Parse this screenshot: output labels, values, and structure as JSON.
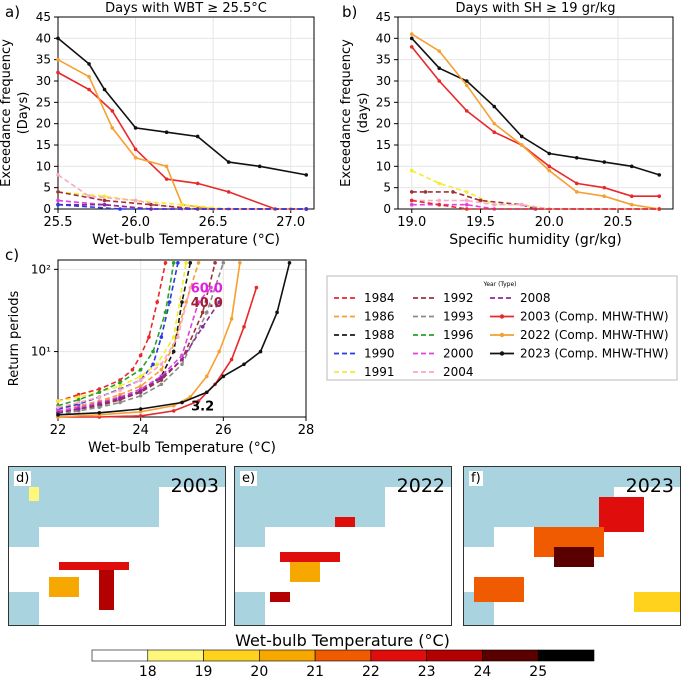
{
  "chart_data": [
    {
      "panel": "a)",
      "type": "line",
      "title": "Days with WBT ≥ 25.5°C",
      "xlabel": "Wet-bulb Temperature (°C)",
      "ylabel": "Exceedance frequency\n(Days)",
      "xlim": [
        25.5,
        27.15
      ],
      "ylim": [
        0,
        45
      ],
      "xticks": [
        "25.5",
        "26.0",
        "26.5",
        "27.0"
      ],
      "yticks": [
        "0",
        "5",
        "10",
        "15",
        "20",
        "25",
        "30",
        "35",
        "40",
        "45"
      ],
      "series": [
        {
          "name": "2023",
          "x": [
            25.5,
            25.7,
            25.8,
            26.0,
            26.2,
            26.4,
            26.6,
            26.8,
            27.1
          ],
          "y": [
            40,
            34,
            28,
            19,
            18,
            17,
            11,
            10,
            8
          ]
        },
        {
          "name": "2003",
          "x": [
            25.5,
            25.7,
            25.85,
            26.0,
            26.2,
            26.4,
            26.6,
            26.9,
            27.1
          ],
          "y": [
            32,
            28,
            23,
            14,
            7,
            6,
            4,
            0,
            0
          ]
        },
        {
          "name": "2022",
          "x": [
            25.5,
            25.7,
            25.85,
            26.0,
            26.2,
            26.3,
            26.5,
            27.0,
            27.1
          ],
          "y": [
            35,
            31,
            19,
            12,
            10,
            1,
            0,
            0,
            0
          ]
        },
        {
          "name": "1991",
          "x": [
            25.5,
            25.8,
            26.0,
            26.3,
            26.6,
            27.1
          ],
          "y": [
            4,
            3,
            2,
            1,
            0,
            0
          ]
        },
        {
          "name": "2004",
          "x": [
            25.5,
            25.7,
            26.0,
            26.3,
            26.6,
            27.1
          ],
          "y": [
            8,
            3,
            2,
            0,
            0,
            0
          ]
        },
        {
          "name": "1992",
          "x": [
            25.5,
            25.8,
            26.1,
            26.4,
            27.1
          ],
          "y": [
            4,
            2,
            1,
            0,
            0
          ]
        },
        {
          "name": "2000",
          "x": [
            25.5,
            25.8,
            26.1,
            27.1
          ],
          "y": [
            2,
            1,
            0,
            0
          ]
        },
        {
          "name": "2008",
          "x": [
            25.5,
            25.8,
            26.1,
            27.1
          ],
          "y": [
            1,
            1,
            0,
            0
          ]
        },
        {
          "name": "1990",
          "x": [
            25.5,
            25.9,
            27.1
          ],
          "y": [
            1,
            0,
            0
          ]
        }
      ]
    },
    {
      "panel": "b)",
      "type": "line",
      "title": "Days with SH ≥ 19 gr/kg",
      "xlabel": "Specific humidity (gr/kg)",
      "ylabel": "Exceedance frequency\n(days)",
      "xlim": [
        18.9,
        20.9
      ],
      "ylim": [
        0,
        45
      ],
      "xticks": [
        "19.0",
        "19.5",
        "20.0",
        "20.5"
      ],
      "yticks": [
        "0",
        "5",
        "10",
        "15",
        "20",
        "25",
        "30",
        "35",
        "40",
        "45"
      ],
      "series": [
        {
          "name": "2023",
          "x": [
            19.0,
            19.2,
            19.4,
            19.6,
            19.8,
            20.0,
            20.2,
            20.4,
            20.6,
            20.8
          ],
          "y": [
            40,
            33,
            30,
            24,
            17,
            13,
            12,
            11,
            10,
            8
          ]
        },
        {
          "name": "2003",
          "x": [
            19.0,
            19.2,
            19.4,
            19.6,
            19.8,
            20.0,
            20.2,
            20.4,
            20.6,
            20.8
          ],
          "y": [
            38,
            30,
            23,
            18,
            15,
            10,
            6,
            5,
            3,
            3
          ]
        },
        {
          "name": "2022",
          "x": [
            19.0,
            19.2,
            19.4,
            19.6,
            19.8,
            20.0,
            20.2,
            20.4,
            20.6,
            20.8
          ],
          "y": [
            41,
            37,
            29,
            20,
            15,
            9,
            4,
            3,
            1,
            0
          ]
        },
        {
          "name": "1991",
          "x": [
            19.0,
            19.2,
            19.4,
            19.6,
            19.8,
            20.0,
            20.8
          ],
          "y": [
            9,
            6,
            4,
            1,
            1,
            0,
            0
          ]
        },
        {
          "name": "1992",
          "x": [
            19.0,
            19.1,
            19.3,
            19.5,
            19.8,
            19.9,
            20.8
          ],
          "y": [
            4,
            4,
            4,
            2,
            1,
            0,
            0
          ]
        },
        {
          "name": "2004",
          "x": [
            19.0,
            19.2,
            19.4,
            19.6,
            19.8,
            20.0,
            20.8
          ],
          "y": [
            2,
            2,
            2,
            1,
            1,
            0,
            0
          ]
        },
        {
          "name": "2000",
          "x": [
            19.0,
            19.2,
            19.4,
            19.6,
            20.8
          ],
          "y": [
            1,
            1,
            1,
            0,
            0
          ]
        },
        {
          "name": "1984",
          "x": [
            19.0,
            19.2,
            19.4,
            20.8
          ],
          "y": [
            2,
            1,
            0,
            0
          ]
        }
      ]
    },
    {
      "panel": "c)",
      "type": "line",
      "yscale": "log",
      "xlabel": "Wet-bulb Temperature (°C)",
      "ylabel": "Return periods",
      "xlim": [
        22,
        28
      ],
      "ylim": [
        1.6,
        130
      ],
      "xticks": [
        "22",
        "24",
        "26",
        "28"
      ],
      "yticks": [
        "10¹",
        "10²"
      ],
      "annotations": [
        {
          "text": "60.0",
          "x": 25.6,
          "y": 60,
          "color": "#e020e0"
        },
        {
          "text": "40.0",
          "x": 25.6,
          "y": 40,
          "color": "#a0203a"
        },
        {
          "text": "3.2",
          "x": 25.5,
          "y": 2.2,
          "color": "#000000"
        }
      ],
      "series": [
        {
          "name": "1984",
          "x": [
            22,
            22.5,
            23,
            23.5,
            23.8,
            24,
            24.2,
            24.4,
            24.6
          ],
          "y": [
            2.5,
            3,
            3.5,
            4.5,
            6,
            9,
            15,
            40,
            120
          ]
        },
        {
          "name": "1986",
          "x": [
            22,
            22.5,
            23,
            23.5,
            24,
            24.5,
            24.8,
            25.1,
            25.4
          ],
          "y": [
            2,
            2.2,
            2.5,
            3,
            3.8,
            6,
            12,
            40,
            120
          ]
        },
        {
          "name": "1988",
          "x": [
            22,
            22.5,
            23,
            23.5,
            24,
            24.5,
            24.8,
            25.0,
            25.2
          ],
          "y": [
            1.8,
            2,
            2.2,
            2.6,
            3.3,
            5,
            10,
            40,
            120
          ]
        },
        {
          "name": "1990",
          "x": [
            22,
            22.5,
            23,
            23.5,
            24,
            24.3,
            24.5,
            24.7,
            24.9
          ],
          "y": [
            2,
            2.3,
            2.8,
            3.5,
            4.5,
            7,
            15,
            40,
            120
          ]
        },
        {
          "name": "1991",
          "x": [
            22,
            22.5,
            23,
            23.5,
            24,
            24.4,
            24.8,
            25.1
          ],
          "y": [
            2.5,
            2.8,
            3.2,
            3.8,
            5,
            7,
            15,
            120
          ]
        },
        {
          "name": "1992",
          "x": [
            22,
            22.5,
            23,
            23.5,
            24,
            24.5,
            25.0,
            25.5,
            25.8
          ],
          "y": [
            1.8,
            2,
            2.2,
            2.6,
            3.2,
            4.5,
            8,
            30,
            120
          ]
        },
        {
          "name": "1993",
          "x": [
            22,
            22.5,
            23,
            23.5,
            24,
            24.5,
            25.0,
            25.6,
            26.0
          ],
          "y": [
            1.7,
            1.9,
            2.1,
            2.4,
            2.9,
            4,
            7,
            30,
            120
          ]
        },
        {
          "name": "1996",
          "x": [
            22,
            22.5,
            23,
            23.5,
            24,
            24.3,
            24.6,
            24.8
          ],
          "y": [
            2.2,
            2.6,
            3.2,
            4.2,
            6,
            10,
            30,
            120
          ]
        },
        {
          "name": "2000",
          "x": [
            22,
            22.5,
            23,
            23.5,
            24,
            24.5,
            25.0,
            25.4,
            25.7
          ],
          "y": [
            1.9,
            2.1,
            2.4,
            2.8,
            3.5,
            5,
            9,
            40,
            60
          ]
        },
        {
          "name": "2004",
          "x": [
            22,
            22.5,
            23,
            23.5,
            24,
            24.5,
            24.9,
            25.2
          ],
          "y": [
            2.1,
            2.4,
            2.8,
            3.4,
            4.5,
            7,
            15,
            60
          ]
        },
        {
          "name": "2008",
          "x": [
            22,
            22.5,
            23,
            23.5,
            24,
            24.5,
            25.0,
            25.5,
            25.9
          ],
          "y": [
            1.8,
            2,
            2.3,
            2.7,
            3.3,
            4.8,
            8,
            20,
            40
          ]
        },
        {
          "name": "2003",
          "x": [
            22,
            23,
            24,
            24.8,
            25.4,
            25.8,
            26.2,
            26.5,
            26.8
          ],
          "y": [
            1.5,
            1.55,
            1.65,
            1.9,
            2.5,
            4,
            8,
            20,
            60
          ]
        },
        {
          "name": "2022",
          "x": [
            22,
            23,
            24,
            24.8,
            25.2,
            25.6,
            25.9,
            26.2,
            26.4
          ],
          "y": [
            1.6,
            1.7,
            1.85,
            2.2,
            2.8,
            5,
            10,
            25,
            120
          ]
        },
        {
          "name": "2023",
          "x": [
            22,
            23,
            24,
            25,
            25.6,
            26.0,
            26.5,
            26.9,
            27.3,
            27.6
          ],
          "y": [
            1.7,
            1.8,
            2,
            2.4,
            3.2,
            5,
            7,
            10,
            30,
            120
          ]
        }
      ]
    }
  ],
  "legend": {
    "title": "Year (Type)",
    "entries": [
      "1984",
      "1986",
      "1988",
      "1990",
      "1991",
      "1992",
      "1993",
      "1996",
      "2000",
      "2004",
      "2008",
      "2003 (Comp. MHW-THW)",
      "2022 (Comp. MHW-THW)",
      "2023 (Comp. MHW-THW)"
    ]
  },
  "series_colors": {
    "1984": "#e8282b",
    "1986": "#f5a030",
    "1988": "#1a1a1a",
    "1990": "#2a3ae0",
    "1991": "#f4ec30",
    "1992": "#a0303a",
    "1993": "#8a8a8a",
    "1996": "#28a028",
    "2000": "#e040e0",
    "2004": "#f8a8c8",
    "2008": "#8a2a9a",
    "2003": "#e8282b",
    "2022": "#f5a030",
    "2023": "#111111"
  },
  "maps": [
    {
      "panel": "d)",
      "year": "2003"
    },
    {
      "panel": "e)",
      "year": "2022"
    },
    {
      "panel": "f)",
      "year": "2023"
    }
  ],
  "colorbar": {
    "title": "Wet-bulb Temperature (°C)",
    "ticks": [
      "18",
      "19",
      "20",
      "21",
      "22",
      "23",
      "24",
      "25"
    ],
    "colors": [
      "#ffffff",
      "#fff77a",
      "#ffd21e",
      "#f6a800",
      "#f05a00",
      "#e00d0d",
      "#b30000",
      "#5a0000",
      "#000000"
    ]
  }
}
